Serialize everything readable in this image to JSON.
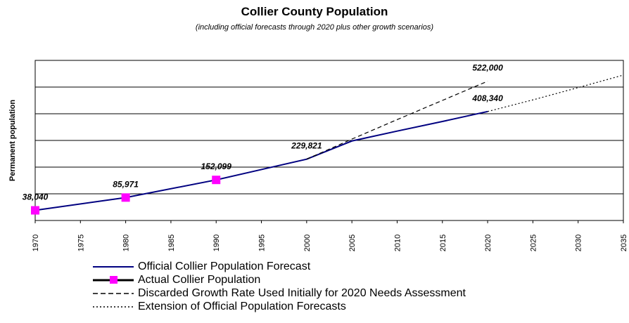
{
  "chart_data": {
    "type": "line",
    "title": "Collier County Population",
    "subtitle": "(including official forecasts through 2020 plus other growth scenarios)",
    "ylabel": "Permanent population",
    "xlabel": "",
    "xlim": [
      1970,
      2035
    ],
    "ylim": [
      0,
      600000
    ],
    "x_ticks": [
      "1970",
      "1975",
      "1980",
      "1985",
      "1990",
      "1995",
      "2000",
      "2005",
      "2010",
      "2015",
      "2020",
      "2025",
      "2030",
      "2035"
    ],
    "grid": "horizontal",
    "legend_position": "bottom",
    "series": [
      {
        "name": "Official Collier Population Forecast",
        "style": "solid",
        "color": "#000080",
        "x": [
          1970,
          1980,
          1990,
          1995,
          2000,
          2005,
          2010,
          2015,
          2020
        ],
        "y": [
          38040,
          85971,
          152099,
          191000,
          229821,
          298000,
          335000,
          371000,
          408340
        ]
      },
      {
        "name": "Actual Collier Population",
        "style": "markers",
        "color": "#ff00ff",
        "x": [
          1970,
          1980,
          1990
        ],
        "y": [
          38040,
          85971,
          152099
        ]
      },
      {
        "name": "Discarded Growth Rate Used Initially for 2020 Needs Assessment",
        "style": "dashed",
        "color": "#000000",
        "x": [
          2000,
          2005,
          2010,
          2015,
          2020
        ],
        "y": [
          229821,
          305000,
          378000,
          450000,
          522000
        ]
      },
      {
        "name": "Extension of Official Population Forecasts",
        "style": "dotted",
        "color": "#000000",
        "x": [
          2020,
          2025,
          2030,
          2035
        ],
        "y": [
          408340,
          452000,
          498000,
          545000
        ]
      }
    ],
    "data_labels": [
      {
        "x": 1970,
        "y": 38040,
        "text": "38,040"
      },
      {
        "x": 1980,
        "y": 85971,
        "text": "85,971"
      },
      {
        "x": 1990,
        "y": 152099,
        "text": "152,099"
      },
      {
        "x": 2000,
        "y": 229821,
        "text": "229,821"
      },
      {
        "x": 2020,
        "y": 408340,
        "text": "408,340"
      },
      {
        "x": 2020,
        "y": 522000,
        "text": "522,000"
      }
    ]
  }
}
